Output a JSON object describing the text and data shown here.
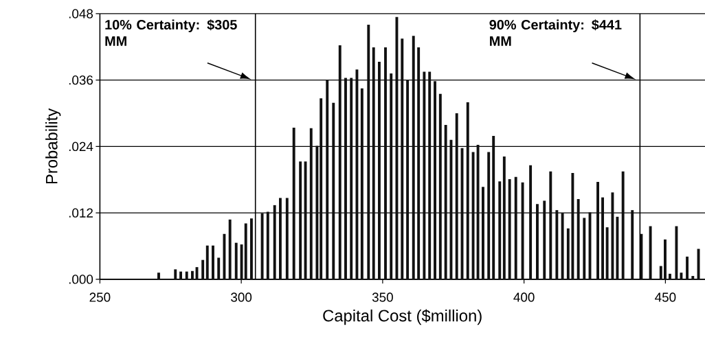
{
  "chart_data": {
    "type": "bar",
    "xlabel": "Capital Cost ($million)",
    "ylabel": "Probability",
    "x": [
      270.8,
      276.7,
      278.6,
      280.7,
      282.7,
      284.3,
      286.4,
      288.0,
      290.0,
      292.0,
      294.0,
      296.0,
      298.2,
      300.1,
      301.6,
      303.6,
      307.4,
      309.4,
      311.8,
      313.8,
      316.2,
      318.6,
      320.9,
      322.7,
      324.7,
      326.8,
      328.2,
      330.4,
      332.6,
      334.9,
      336.9,
      338.9,
      340.9,
      342.7,
      345.0,
      346.8,
      348.8,
      351.0,
      353.0,
      355.0,
      356.9,
      358.8,
      360.9,
      362.7,
      364.7,
      366.6,
      368.5,
      370.4,
      372.3,
      374.2,
      376.2,
      378.1,
      380.1,
      382.0,
      383.7,
      385.5,
      387.5,
      389.2,
      391.4,
      393.0,
      394.9,
      397.1,
      399.5,
      402.3,
      404.7,
      407.2,
      409.4,
      411.6,
      413.6,
      415.6,
      417.2,
      419.2,
      421.3,
      423.3,
      426.1,
      427.8,
      429.4,
      431.3,
      433.0,
      435.0,
      438.3,
      441.5,
      444.7,
      448.4,
      449.9,
      451.6,
      453.9,
      455.6,
      457.7,
      459.7,
      461.7
    ],
    "values": [
      0.0012,
      0.0018,
      0.0014,
      0.0014,
      0.0015,
      0.0022,
      0.0035,
      0.0061,
      0.0061,
      0.0039,
      0.0082,
      0.0108,
      0.0066,
      0.0063,
      0.0101,
      0.011,
      0.0119,
      0.0122,
      0.0134,
      0.0147,
      0.0147,
      0.0274,
      0.0213,
      0.0213,
      0.0273,
      0.0241,
      0.0327,
      0.036,
      0.0319,
      0.0423,
      0.0364,
      0.0364,
      0.0379,
      0.0345,
      0.046,
      0.0419,
      0.0393,
      0.0419,
      0.0372,
      0.0474,
      0.0435,
      0.0361,
      0.044,
      0.0419,
      0.0375,
      0.0375,
      0.0358,
      0.0335,
      0.0279,
      0.0252,
      0.03,
      0.0237,
      0.032,
      0.023,
      0.0243,
      0.0167,
      0.023,
      0.0259,
      0.0177,
      0.0222,
      0.0181,
      0.0185,
      0.0175,
      0.0206,
      0.0136,
      0.0142,
      0.0195,
      0.0125,
      0.012,
      0.0092,
      0.0192,
      0.0145,
      0.0111,
      0.0121,
      0.0176,
      0.0148,
      0.0094,
      0.0157,
      0.0113,
      0.0195,
      0.0125,
      0.0082,
      0.0096,
      0.0024,
      0.0072,
      0.001,
      0.0096,
      0.0012,
      0.0041,
      0.0006,
      0.0055
    ],
    "color": "#111111",
    "xlim": [
      250,
      464
    ],
    "ylim": [
      0,
      0.048
    ],
    "xticks": [
      250,
      300,
      350,
      400,
      450
    ],
    "yticks": [
      {
        "value": 0,
        "label": ".000"
      },
      {
        "value": 0.012,
        "label": ".012"
      },
      {
        "value": 0.024,
        "label": ".024"
      },
      {
        "value": 0.036,
        "label": ".036"
      },
      {
        "value": 0.048,
        "label": ".048"
      }
    ],
    "grid": "y",
    "ref_lines": [
      {
        "axis": "x",
        "value": 305,
        "label": "10% Certainty: $305 MM"
      },
      {
        "axis": "x",
        "value": 441,
        "label": "90% Certainty: $441 MM"
      }
    ]
  }
}
